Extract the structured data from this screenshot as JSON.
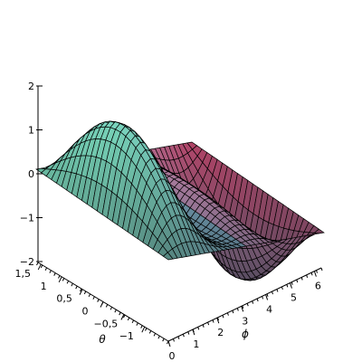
{
  "chart_data": {
    "type": "surface",
    "z_axis": {
      "ticks": [
        2,
        1,
        0,
        -1,
        -2
      ],
      "tick_labels": [
        "2",
        "1",
        "0",
        "−1",
        "−2"
      ],
      "range": [
        -2,
        2
      ]
    },
    "theta_axis": {
      "label": "θ",
      "ticks": [
        1.5,
        1,
        0.5,
        0,
        -0.5,
        -1
      ],
      "tick_labels": [
        "1,5",
        "1",
        "0,5",
        "0",
        "−0,5",
        "−1"
      ],
      "range": [
        -1.5708,
        1.5708
      ]
    },
    "phi_axis": {
      "label": "ϕ",
      "ticks": [
        0,
        1,
        2,
        3,
        4,
        5,
        6
      ],
      "tick_labels": [
        "0",
        "1",
        "2",
        "3",
        "4",
        "5",
        "6"
      ],
      "range": [
        0,
        6.2832
      ]
    },
    "function": "z = cos(theta) * (sin(2*phi) + 1.2*sin(phi))",
    "grid": {
      "theta_lines": 26,
      "phi_lines": 34
    },
    "colors": {
      "surface_light": "#7ff5c4",
      "surface_mid": "#8fd0e8",
      "surface_pink": "#f4a6d6",
      "surface_red": "#ee3d6a",
      "surface_dark": "#3f4a5a",
      "mesh": "#000000",
      "axis": "#000000"
    }
  }
}
